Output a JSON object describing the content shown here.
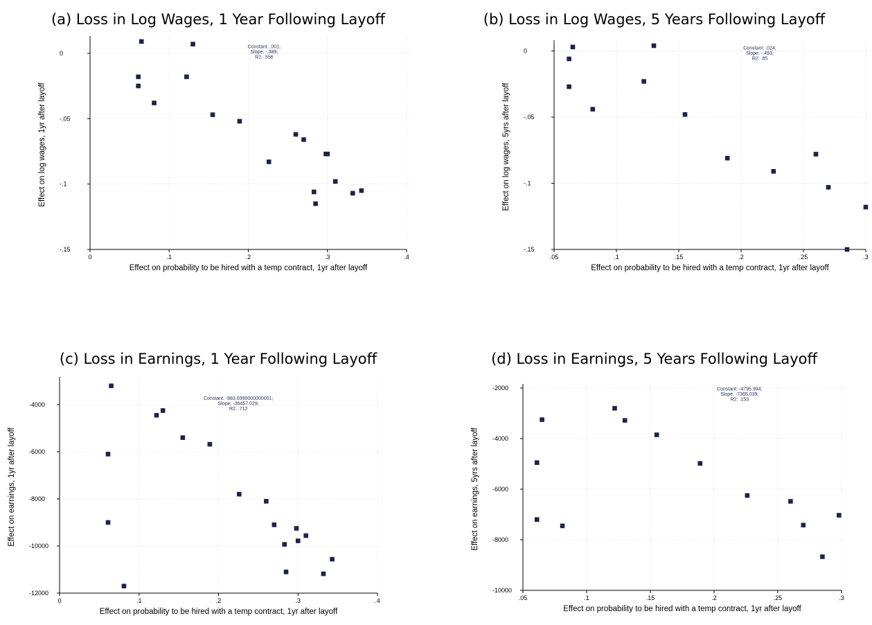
{
  "chart_data": [
    {
      "id": "a",
      "type": "scatter",
      "title": "(a) Loss in Log Wages, 1 Year Following Layoff",
      "xlabel": "Effect on probability to be hired with a temp contract, 1yr after layoff",
      "ylabel": "Effect on log wages, 1yr after layoff",
      "xlim": [
        0,
        0.4
      ],
      "ylim": [
        -0.15,
        0.01
      ],
      "xticks": [
        0,
        0.1,
        0.2,
        0.3,
        0.4
      ],
      "xtick_labels": [
        "0",
        ".1",
        ".2",
        ".3",
        ".4"
      ],
      "yticks": [
        0,
        -0.05,
        -0.1,
        -0.15
      ],
      "ytick_labels": [
        "0",
        "-.05",
        "-.1",
        "-.15"
      ],
      "grid": true,
      "annotation": [
        "Constant: .001;",
        "Slope: -.389;",
        "R2: .556"
      ],
      "annotation_at": [
        0.22,
        0.004
      ],
      "points": [
        [
          0.065,
          0.009
        ],
        [
          0.13,
          0.007
        ],
        [
          0.061,
          -0.018
        ],
        [
          0.061,
          -0.025
        ],
        [
          0.122,
          -0.018
        ],
        [
          0.081,
          -0.038
        ],
        [
          0.155,
          -0.047
        ],
        [
          0.189,
          -0.052
        ],
        [
          0.226,
          -0.083
        ],
        [
          0.26,
          -0.062
        ],
        [
          0.27,
          -0.066
        ],
        [
          0.298,
          -0.077
        ],
        [
          0.3,
          -0.077
        ],
        [
          0.283,
          -0.106
        ],
        [
          0.285,
          -0.115
        ],
        [
          0.31,
          -0.098
        ],
        [
          0.332,
          -0.107
        ],
        [
          0.343,
          -0.105
        ]
      ]
    },
    {
      "id": "b",
      "type": "scatter",
      "title": "(b) Loss in Log Wages, 5 Years Following Layoff",
      "xlabel": "Effect on probability to be hired with a temp contract, 1yr after layoff",
      "ylabel": "Effect on log wages, 5yrs after layoff",
      "xlim": [
        0.05,
        0.3
      ],
      "ylim": [
        -0.15,
        0.005
      ],
      "xticks": [
        0.05,
        0.1,
        0.15,
        0.2,
        0.25,
        0.3
      ],
      "xtick_labels": [
        ".05",
        ".1",
        ".15",
        ".2",
        ".25",
        ".3"
      ],
      "yticks": [
        0,
        -0.05,
        -0.1,
        -0.15
      ],
      "ytick_labels": [
        "0",
        "-.05",
        "-.1",
        "-.15"
      ],
      "grid": true,
      "annotation": [
        "Constant: .024;",
        "Slope: -.493;",
        "R2: .85"
      ],
      "annotation_at": [
        0.215,
        0.001
      ],
      "points": [
        [
          0.065,
          0.003
        ],
        [
          0.13,
          0.004
        ],
        [
          0.062,
          -0.006
        ],
        [
          0.062,
          -0.027
        ],
        [
          0.122,
          -0.023
        ],
        [
          0.081,
          -0.044
        ],
        [
          0.155,
          -0.048
        ],
        [
          0.189,
          -0.081
        ],
        [
          0.226,
          -0.091
        ],
        [
          0.26,
          -0.078
        ],
        [
          0.27,
          -0.103
        ],
        [
          0.285,
          -0.15
        ],
        [
          0.3,
          -0.118
        ]
      ]
    },
    {
      "id": "c",
      "type": "scatter",
      "title": "(c) Loss in Earnings, 1 Year Following Layoff",
      "xlabel": "Effect on probability to be hired with a temp contract, 1yr after layoff",
      "ylabel": "Effect on earnings, 1yr after layoff",
      "xlim": [
        0,
        0.4
      ],
      "ylim": [
        -12000,
        -3000
      ],
      "xticks": [
        0,
        0.1,
        0.2,
        0.3,
        0.4
      ],
      "xtick_labels": [
        "0",
        ".1",
        ".2",
        ".3",
        ".4"
      ],
      "yticks": [
        -4000,
        -6000,
        -8000,
        -10000,
        -12000
      ],
      "ytick_labels": [
        "-4000",
        "-6000",
        "-8000",
        "-10000",
        "-12000"
      ],
      "grid": true,
      "annotation": [
        "Constant: -883.6990000000001;",
        "Slope: -36457.029;",
        "R2: .712"
      ],
      "annotation_at": [
        0.225,
        -3800
      ],
      "points": [
        [
          0.065,
          -3200
        ],
        [
          0.061,
          -6100
        ],
        [
          0.061,
          -9000
        ],
        [
          0.081,
          -11700
        ],
        [
          0.122,
          -4450
        ],
        [
          0.13,
          -4250
        ],
        [
          0.155,
          -5400
        ],
        [
          0.189,
          -5680
        ],
        [
          0.226,
          -7800
        ],
        [
          0.26,
          -8100
        ],
        [
          0.27,
          -9100
        ],
        [
          0.283,
          -9930
        ],
        [
          0.285,
          -11100
        ],
        [
          0.298,
          -9250
        ],
        [
          0.3,
          -9780
        ],
        [
          0.31,
          -9560
        ],
        [
          0.332,
          -11180
        ],
        [
          0.343,
          -10560
        ]
      ]
    },
    {
      "id": "d",
      "type": "scatter",
      "title": "(d) Loss in Earnings, 5 Years Following Layoff",
      "xlabel": "Effect on probability to be hired with a temp contract, 1yr after layoff",
      "ylabel": "Effect on earnings, 5yrs after layoff",
      "xlim": [
        0.05,
        0.3
      ],
      "ylim": [
        -10000,
        -2000
      ],
      "xticks": [
        0.05,
        0.1,
        0.15,
        0.2,
        0.25,
        0.3
      ],
      "xtick_labels": [
        ".05",
        ".1",
        ".15",
        ".2",
        ".25",
        ".3"
      ],
      "yticks": [
        -2000,
        -4000,
        -6000,
        -8000,
        -10000
      ],
      "ytick_labels": [
        "-2000",
        "-4000",
        "-6000",
        "-8000",
        "-10000"
      ],
      "grid": true,
      "annotation": [
        "Constant: -4795.994;",
        "Slope: -7365.039;",
        "R2: .153"
      ],
      "annotation_at": [
        0.22,
        -2100
      ],
      "points": [
        [
          0.065,
          -3250
        ],
        [
          0.061,
          -4950
        ],
        [
          0.061,
          -7200
        ],
        [
          0.081,
          -7450
        ],
        [
          0.122,
          -2800
        ],
        [
          0.13,
          -3280
        ],
        [
          0.155,
          -3850
        ],
        [
          0.189,
          -4980
        ],
        [
          0.226,
          -6250
        ],
        [
          0.26,
          -6480
        ],
        [
          0.27,
          -7420
        ],
        [
          0.285,
          -8670
        ],
        [
          0.298,
          -7030
        ]
      ]
    }
  ]
}
